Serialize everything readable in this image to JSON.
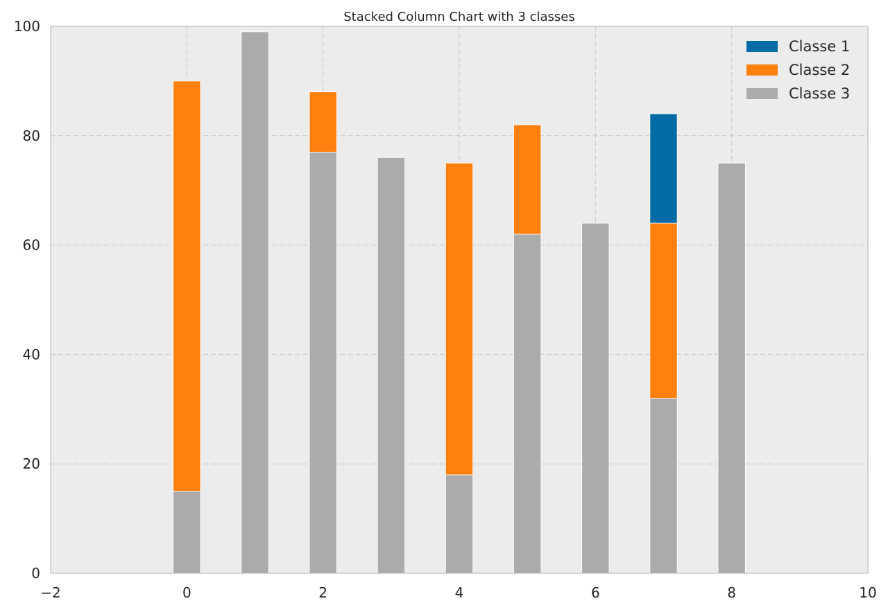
{
  "chart_data": {
    "type": "bar",
    "stacked": true,
    "title": "Stacked Column Chart with 3 classes",
    "xlabel": "",
    "ylabel": "",
    "x": [
      0,
      1,
      2,
      3,
      4,
      5,
      6,
      7,
      8
    ],
    "xlim": [
      -2,
      10
    ],
    "ylim": [
      0,
      100
    ],
    "xticks": [
      "−2",
      "0",
      "2",
      "4",
      "6",
      "8",
      "10"
    ],
    "yticks": [
      "0",
      "20",
      "40",
      "60",
      "80",
      "100"
    ],
    "grid": true,
    "legend_position": "top-right",
    "bar_width": 0.4,
    "series": [
      {
        "name": "Classe 3",
        "color": "#ababab",
        "values": [
          15,
          99,
          77,
          76,
          18,
          62,
          64,
          32,
          75
        ]
      },
      {
        "name": "Classe 2",
        "color": "#ff800e",
        "values": [
          75,
          0,
          11,
          0,
          57,
          20,
          0,
          32,
          0
        ]
      },
      {
        "name": "Classe 1",
        "color": "#006ba4",
        "values": [
          0,
          0,
          0,
          0,
          0,
          0,
          0,
          20,
          0
        ]
      }
    ],
    "legend_order": [
      "Classe 1",
      "Classe 2",
      "Classe 3"
    ],
    "plot_background": "#ececec"
  }
}
